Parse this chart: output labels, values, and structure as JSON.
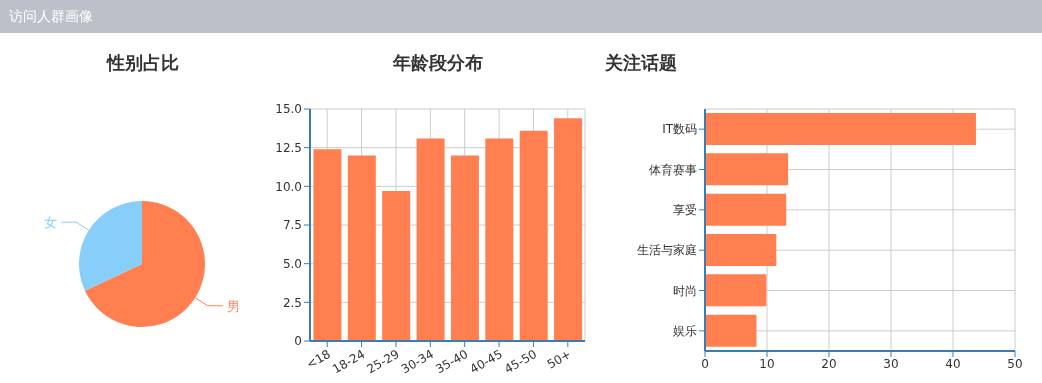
{
  "chart_data": [
    {
      "type": "other",
      "title": "访问人群画像"
    },
    {
      "type": "pie",
      "title": "性别占比",
      "categories": [
        "男",
        "女"
      ],
      "values": [
        68,
        32
      ],
      "colors": [
        "#ff7f50",
        "#87cefa"
      ]
    },
    {
      "type": "bar",
      "title": "年龄段分布",
      "categories": [
        "<18",
        "18-24",
        "25-29",
        "30-34",
        "35-40",
        "40-45",
        "45-50",
        "50+"
      ],
      "values": [
        12.4,
        12.0,
        9.7,
        13.1,
        12.0,
        13.1,
        13.6,
        14.4
      ],
      "color": "#ff7f50",
      "ylim": [
        0,
        15
      ],
      "yticks": [
        0,
        2.5,
        {
          "value": 5,
          "label": "5.0"
        },
        7.5,
        {
          "value": 10,
          "label": "10.0"
        },
        12.5,
        {
          "value": 15,
          "label": "15.0"
        }
      ],
      "grid": true
    },
    {
      "type": "bar",
      "orientation": "horizontal",
      "title": "关注话题",
      "categories": [
        "IT数码",
        "体育赛事",
        "享受",
        "生活与家庭",
        "时尚",
        "娱乐"
      ],
      "values": [
        43.7,
        13.4,
        13.1,
        11.5,
        9.9,
        8.3
      ],
      "color": "#ff7f50",
      "xlim": [
        0,
        50
      ],
      "xticks": [
        0,
        10,
        20,
        30,
        40,
        50
      ],
      "grid": true
    }
  ]
}
